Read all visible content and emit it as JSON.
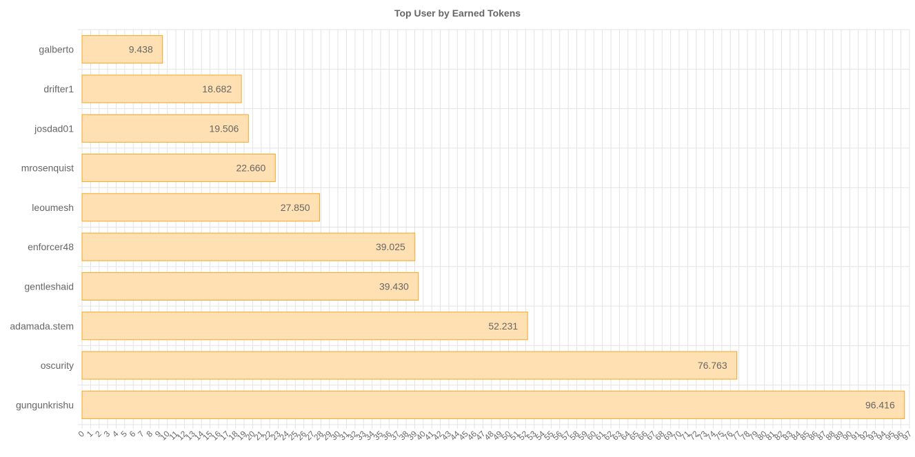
{
  "chart_data": {
    "type": "bar",
    "orientation": "horizontal",
    "title": "Top User by Earned Tokens",
    "xlabel": "",
    "ylabel": "",
    "categories": [
      "galberto",
      "drifter1",
      "josdad01",
      "mrosenquist",
      "leoumesh",
      "enforcer48",
      "gentleshaid",
      "adamada.stem",
      "oscurity",
      "gungunkrishu"
    ],
    "values": [
      9.438,
      18.682,
      19.506,
      22.66,
      27.85,
      39.025,
      39.43,
      52.231,
      76.763,
      96.416
    ],
    "value_labels": [
      "9.438",
      "18.682",
      "19.506",
      "22.660",
      "27.850",
      "39.025",
      "39.430",
      "52.231",
      "76.763",
      "96.416"
    ],
    "xlim": [
      0,
      97
    ],
    "x_ticks": [
      "0",
      "1",
      "2",
      "3",
      "4",
      "5",
      "6",
      "7",
      "8",
      "9",
      "10",
      "11",
      "12",
      "13",
      "14",
      "15",
      "16",
      "17",
      "18",
      "19",
      "20",
      "21",
      "22",
      "23",
      "24",
      "25",
      "26",
      "27",
      "28",
      "29",
      "30",
      "31",
      "32",
      "33",
      "34",
      "35",
      "36",
      "37",
      "38",
      "39",
      "40",
      "41",
      "42",
      "43",
      "44",
      "45",
      "46",
      "47",
      "48",
      "49",
      "50",
      "51",
      "52",
      "53",
      "54",
      "55",
      "56",
      "57",
      "58",
      "59",
      "60",
      "61",
      "62",
      "63",
      "64",
      "65",
      "66",
      "67",
      "68",
      "69",
      "70",
      "71",
      "72",
      "73",
      "74",
      "75",
      "76",
      "77",
      "78",
      "79",
      "80",
      "81",
      "82",
      "83",
      "84",
      "85",
      "86",
      "87",
      "88",
      "89",
      "90",
      "91",
      "92",
      "93",
      "94",
      "95",
      "96",
      "97"
    ],
    "grid": true,
    "legend": "none",
    "colors": {
      "bar_fill": "#ffe0b2",
      "bar_stroke": "#f5a623",
      "grid": "#e3e3e3",
      "text": "#666666"
    }
  }
}
